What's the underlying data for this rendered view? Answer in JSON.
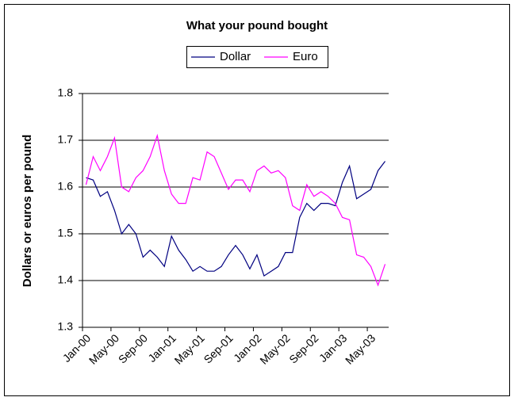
{
  "chart_data": {
    "type": "line",
    "title": "What your pound bought",
    "y_label": "Dollars or euros per pound",
    "categories": [
      "Jan-00",
      null,
      null,
      null,
      "May-00",
      null,
      null,
      null,
      "Sep-00",
      null,
      null,
      null,
      "Jan-01",
      null,
      null,
      null,
      "May-01",
      null,
      null,
      null,
      "Sep-01",
      null,
      null,
      null,
      "Jan-02",
      null,
      null,
      null,
      "May-02",
      null,
      null,
      null,
      "Sep-02",
      null,
      null,
      null,
      "Jan-03",
      null,
      null,
      null,
      "May-03",
      null,
      null
    ],
    "series": [
      {
        "name": "Dollar",
        "color": "#000080",
        "values": [
          1.62,
          1.615,
          1.58,
          1.59,
          1.55,
          1.5,
          1.52,
          1.5,
          1.45,
          1.465,
          1.45,
          1.43,
          1.495,
          1.465,
          1.445,
          1.42,
          1.43,
          1.42,
          1.42,
          1.43,
          1.455,
          1.475,
          1.455,
          1.425,
          1.455,
          1.41,
          1.42,
          1.43,
          1.46,
          1.46,
          1.535,
          1.565,
          1.55,
          1.565,
          1.565,
          1.56,
          1.61,
          1.645,
          1.575,
          1.585,
          1.595,
          1.635,
          1.655
        ]
      },
      {
        "name": "Euro",
        "color": "#ff00ff",
        "values": [
          1.605,
          1.665,
          1.635,
          1.665,
          1.705,
          1.6,
          1.59,
          1.62,
          1.635,
          1.665,
          1.71,
          1.635,
          1.585,
          1.565,
          1.565,
          1.62,
          1.615,
          1.675,
          1.665,
          1.63,
          1.595,
          1.615,
          1.615,
          1.59,
          1.635,
          1.645,
          1.63,
          1.635,
          1.62,
          1.56,
          1.55,
          1.605,
          1.58,
          1.59,
          1.58,
          1.565,
          1.535,
          1.53,
          1.455,
          1.45,
          1.43,
          1.39,
          1.435
        ]
      }
    ],
    "ylim": [
      1.3,
      1.8
    ],
    "yticks": [
      1.3,
      1.4,
      1.5,
      1.6,
      1.7,
      1.8
    ],
    "grid": true,
    "legend": "top"
  }
}
